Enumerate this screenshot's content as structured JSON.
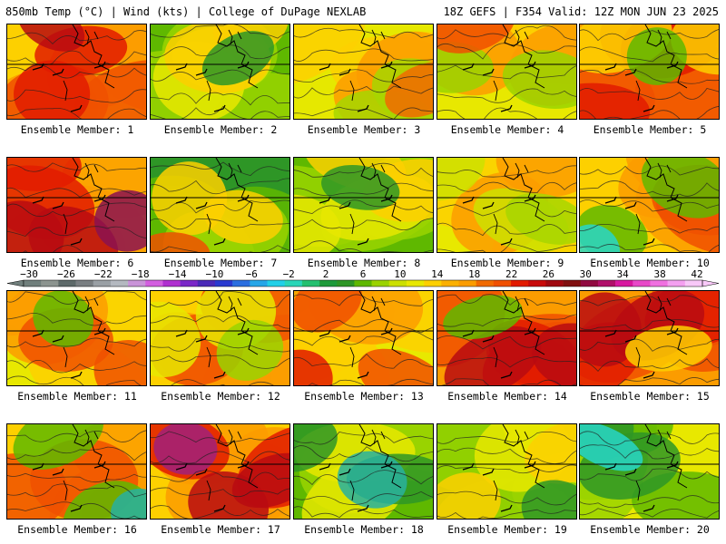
{
  "header": {
    "left": "850mb Temp (°C) | Wind (kts) | College of DuPage NEXLAB",
    "right": "18Z GEFS | F354 Valid: 12Z MON JUN 23 2025"
  },
  "members": [
    {
      "label": "Ensemble Member: 1",
      "palette": [
        "#fdd000",
        "#fb9c00",
        "#f05000",
        "#e21b00",
        "#b80a10"
      ]
    },
    {
      "label": "Ensemble Member: 2",
      "palette": [
        "#5fb800",
        "#9ad300",
        "#e8e800",
        "#fbcf00",
        "#2e9626"
      ]
    },
    {
      "label": "Ensemble Member: 3",
      "palette": [
        "#e6e800",
        "#fdd000",
        "#fb9c00",
        "#a7d600",
        "#f16a00"
      ]
    },
    {
      "label": "Ensemble Member: 4",
      "palette": [
        "#e8e800",
        "#fdd000",
        "#fb9c00",
        "#9ad300",
        "#f05000"
      ]
    },
    {
      "label": "Ensemble Member: 5",
      "palette": [
        "#fb9c00",
        "#f05000",
        "#e21b00",
        "#fdd000",
        "#5fb800"
      ]
    },
    {
      "label": "Ensemble Member: 6",
      "palette": [
        "#fdd000",
        "#fb9c00",
        "#e21b00",
        "#b80a10",
        "#8b1250"
      ]
    },
    {
      "label": "Ensemble Member: 7",
      "palette": [
        "#2e9626",
        "#5fb800",
        "#9ad300",
        "#fdd000",
        "#f05000"
      ]
    },
    {
      "label": "Ensemble Member: 8",
      "palette": [
        "#5fb800",
        "#9ad300",
        "#e8e800",
        "#fdd000",
        "#2e9626"
      ]
    },
    {
      "label": "Ensemble Member: 9",
      "palette": [
        "#e8e800",
        "#fdd000",
        "#fb9c00",
        "#cce000",
        "#a7d600"
      ]
    },
    {
      "label": "Ensemble Member: 10",
      "palette": [
        "#fdd000",
        "#fb9c00",
        "#f05000",
        "#5fb800",
        "#27d6c8"
      ]
    },
    {
      "label": "Ensemble Member: 11",
      "palette": [
        "#e8e800",
        "#fdd000",
        "#fb9c00",
        "#f05000",
        "#5fb800"
      ]
    },
    {
      "label": "Ensemble Member: 12",
      "palette": [
        "#fdd000",
        "#fb9c00",
        "#f05000",
        "#e8e800",
        "#9ad300"
      ]
    },
    {
      "label": "Ensemble Member: 13",
      "palette": [
        "#e8e800",
        "#fdd000",
        "#fb9c00",
        "#f05000",
        "#e21b00"
      ]
    },
    {
      "label": "Ensemble Member: 14",
      "palette": [
        "#fb9c00",
        "#f05000",
        "#e21b00",
        "#b80a10",
        "#5fb800"
      ]
    },
    {
      "label": "Ensemble Member: 15",
      "palette": [
        "#fb9c00",
        "#f05000",
        "#e21b00",
        "#b80a10",
        "#fdd000"
      ]
    },
    {
      "label": "Ensemble Member: 16",
      "palette": [
        "#fdd000",
        "#fb9c00",
        "#f05000",
        "#5fb800",
        "#27b0a0"
      ]
    },
    {
      "label": "Ensemble Member: 17",
      "palette": [
        "#fdd000",
        "#fb9c00",
        "#e21b00",
        "#b80a10",
        "#a0207a"
      ]
    },
    {
      "label": "Ensemble Member: 18",
      "palette": [
        "#5fb800",
        "#9ad300",
        "#e8e800",
        "#2e9626",
        "#27b0a0"
      ]
    },
    {
      "label": "Ensemble Member: 19",
      "palette": [
        "#5fb800",
        "#9ad300",
        "#e8e800",
        "#fdd000",
        "#2e9626"
      ]
    },
    {
      "label": "Ensemble Member: 20",
      "palette": [
        "#e8e800",
        "#9ad300",
        "#5fb800",
        "#2e9626",
        "#27d6c8"
      ]
    }
  ],
  "colorbar": {
    "labels": [
      "−30",
      "−26",
      "−22",
      "−18",
      "−14",
      "−10",
      "−6",
      "−2",
      "2",
      "6",
      "10",
      "14",
      "18",
      "22",
      "26",
      "30",
      "34",
      "38",
      "42"
    ],
    "colors": [
      "#707f7c",
      "#8c948f",
      "#5e6a6a",
      "#7a7f82",
      "#9aa0a5",
      "#b4b9c0",
      "#c993d8",
      "#d35ee0",
      "#b030d0",
      "#7a28c8",
      "#4a2ab8",
      "#2a3ad0",
      "#2b6ee0",
      "#26a6e8",
      "#22d0e8",
      "#2ad6b8",
      "#24c070",
      "#1e9a3a",
      "#2e9626",
      "#5fb800",
      "#9ad300",
      "#cce000",
      "#e8e800",
      "#fdd000",
      "#fbb000",
      "#fb9c00",
      "#f16a00",
      "#f05000",
      "#e21b00",
      "#c80a0a",
      "#a00810",
      "#801010",
      "#900a40",
      "#b0106a",
      "#d818a0",
      "#e848c8",
      "#f070e0",
      "#f4a0f0",
      "#f8c8f8"
    ]
  }
}
